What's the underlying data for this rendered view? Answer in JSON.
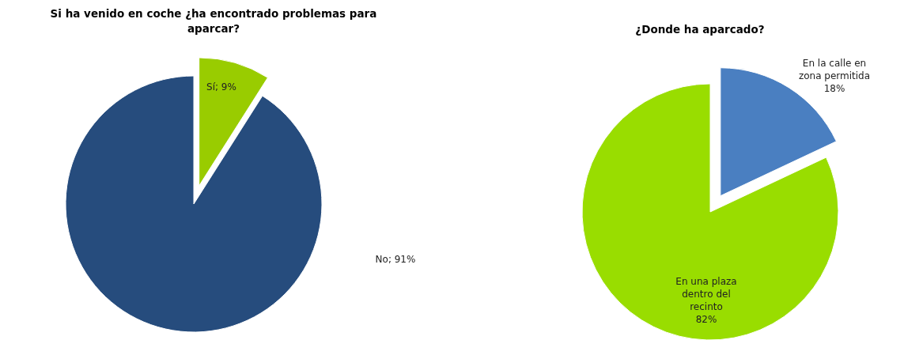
{
  "chart_data": [
    {
      "type": "pie",
      "title": "Si ha venido en coche ¿ha encontrado problemas para aparcar?",
      "categories": [
        "Sí",
        "No"
      ],
      "values": [
        9,
        91
      ],
      "colors": [
        "#99cc00",
        "#264c7d"
      ],
      "value_labels": [
        "9%",
        "91%"
      ]
    },
    {
      "type": "pie",
      "title": "¿Donde ha aparcado?",
      "categories": [
        "En la calle en zona permitida",
        "En una plaza dentro del recinto"
      ],
      "values": [
        18,
        82
      ],
      "colors": [
        "#4a7fc1",
        "#99dd00"
      ],
      "value_labels": [
        "18%",
        "82%"
      ]
    }
  ]
}
